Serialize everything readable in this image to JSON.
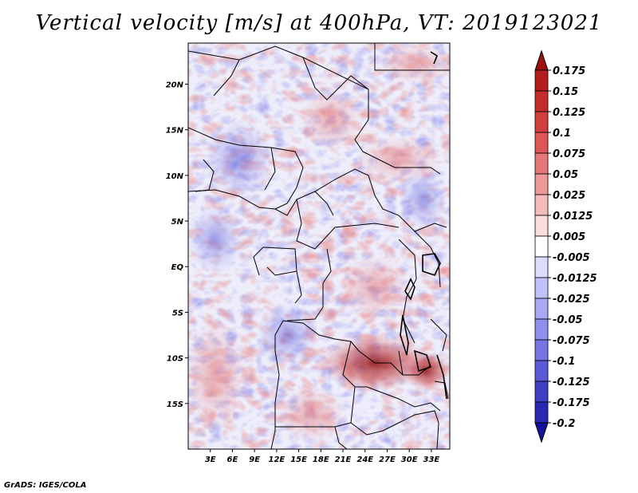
{
  "title": "Vertical velocity [m/s] at 400hPa, VT: 2019123021",
  "credit": "GrADS: IGES/COLA",
  "map": {
    "lon_range": [
      0,
      35.5
    ],
    "lat_range": [
      -20,
      24.5
    ],
    "x_ticks": [
      "3E",
      "6E",
      "9E",
      "12E",
      "15E",
      "18E",
      "21E",
      "24E",
      "27E",
      "30E",
      "33E"
    ],
    "x_tick_values": [
      3,
      6,
      9,
      12,
      15,
      18,
      21,
      24,
      27,
      30,
      33
    ],
    "y_ticks": [
      "20N",
      "15N",
      "10N",
      "5N",
      "EQ",
      "5S",
      "10S",
      "15S"
    ],
    "y_tick_values": [
      20,
      15,
      10,
      5,
      0,
      -5,
      -10,
      -15
    ]
  },
  "colorbar": {
    "labels": [
      "0.175",
      "0.15",
      "0.125",
      "0.1",
      "0.075",
      "0.05",
      "0.025",
      "0.0125",
      "0.005",
      "-0.005",
      "-0.0125",
      "-0.025",
      "-0.05",
      "-0.075",
      "-0.1",
      "-0.125",
      "-0.175",
      "-0.2"
    ],
    "colors": [
      "#9e1010",
      "#b41d1d",
      "#c42c2c",
      "#d23d3d",
      "#de5656",
      "#e67777",
      "#ee9898",
      "#f5bcbc",
      "#fbdddd",
      "#ffffff",
      "#dcdcff",
      "#c2c2fa",
      "#a8a8f4",
      "#8f8fee",
      "#7575e4",
      "#5a5ad6",
      "#3f3fc4",
      "#2828b0",
      "#14149a"
    ]
  },
  "field_colors": {
    "red": "#d24848",
    "blue": "#5a5ad8",
    "dark_red": "#8e1010"
  }
}
